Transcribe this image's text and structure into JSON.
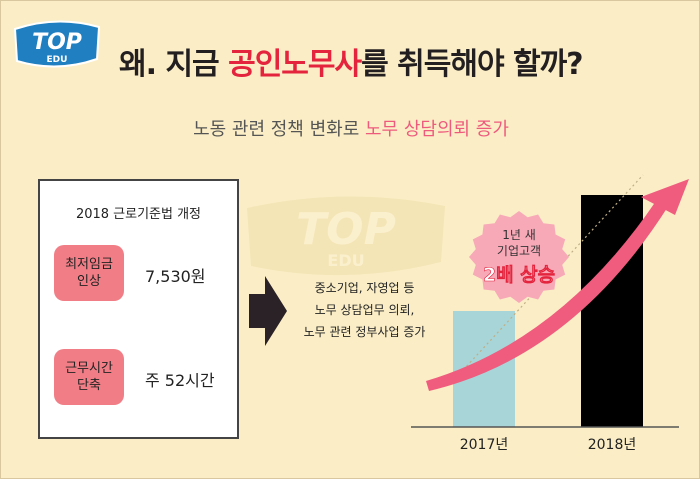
{
  "brand": {
    "logo_top": "TOP",
    "logo_bottom": "EDU"
  },
  "header": {
    "title_pre": "왜. 지금 ",
    "title_highlight": "공인노무사",
    "title_post": "를 취득해야 할까?",
    "subtitle_pre": "노동 관련 정책 변화로 ",
    "subtitle_highlight": "노무 상담의뢰 증가"
  },
  "law_box": {
    "title": "2018 근로기준법 개정",
    "items": [
      {
        "label": "최저임금\n인상",
        "value": "7,530원"
      },
      {
        "label": "근무시간\n단축",
        "value": "주 52시간"
      }
    ]
  },
  "effects": [
    "중소기업, 자영업 등",
    "노무 상담업무 의뢰,",
    "노무 관련 정부사업 증가"
  ],
  "callout": {
    "line1": "1년 새",
    "line2": "기업고객",
    "line3": "2배 상승"
  },
  "chart_data": {
    "type": "bar",
    "categories": [
      "2017년",
      "2018년"
    ],
    "values": [
      1,
      2
    ],
    "colors": [
      "#a8d5d8",
      "#000000"
    ],
    "annotation": "2배 상승"
  },
  "colors": {
    "background": "#fbeec6",
    "accent_red": "#e4233c",
    "accent_pink": "#ee5a7d",
    "pill": "#f17e86",
    "arrow": "#ef5c7e"
  }
}
